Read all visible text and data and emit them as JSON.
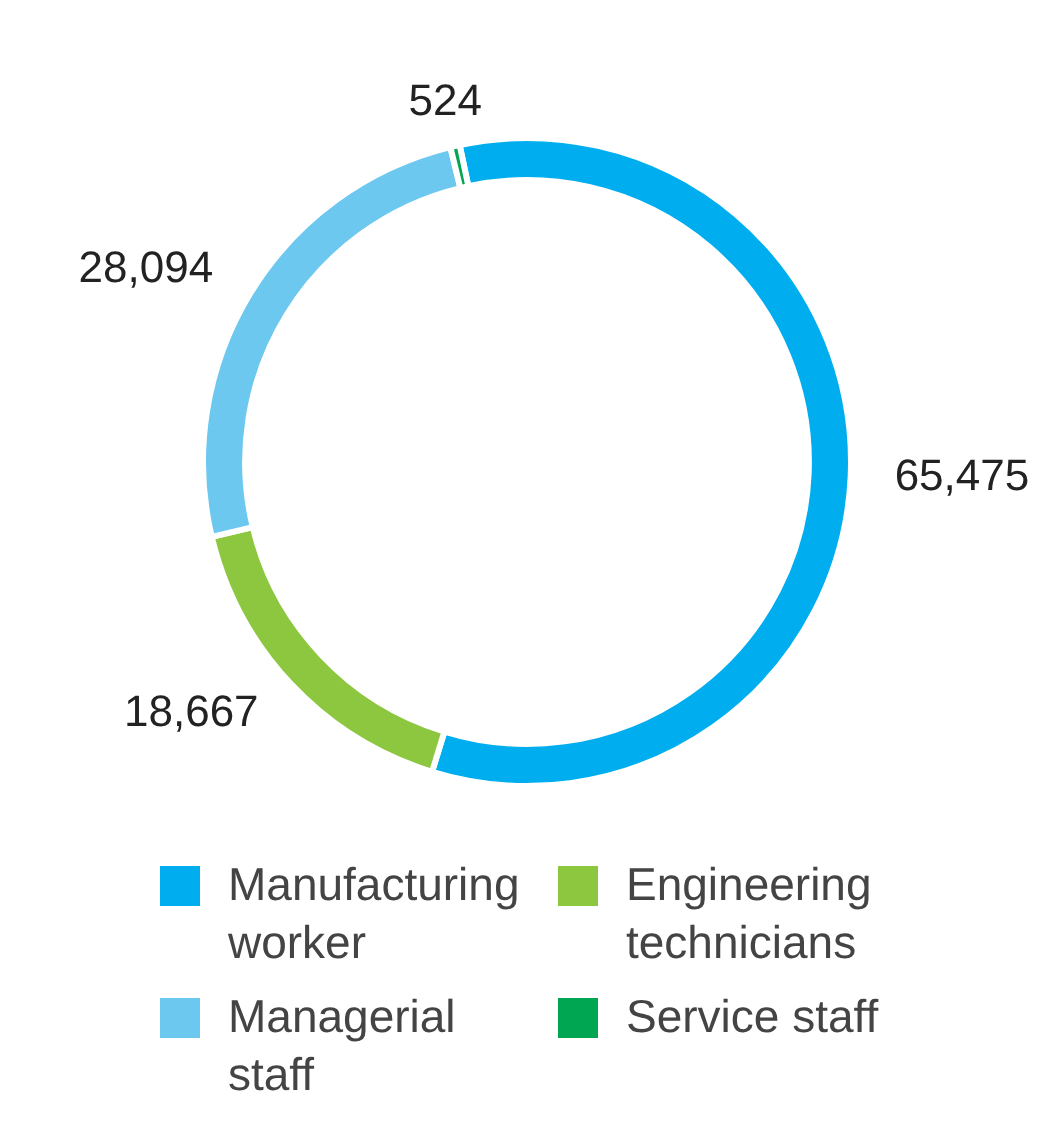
{
  "chart_data": {
    "type": "donut",
    "categories": [
      "Manufacturing worker",
      "Engineering technicians",
      "Managerial staff",
      "Service staff"
    ],
    "values": [
      65475,
      18667,
      28094,
      524
    ],
    "value_labels": [
      "65,475",
      "18,667",
      "28,094",
      "524"
    ],
    "colors": [
      "#00aeef",
      "#8dc63f",
      "#6dc8f0",
      "#00a651"
    ],
    "legend": "bottom"
  }
}
